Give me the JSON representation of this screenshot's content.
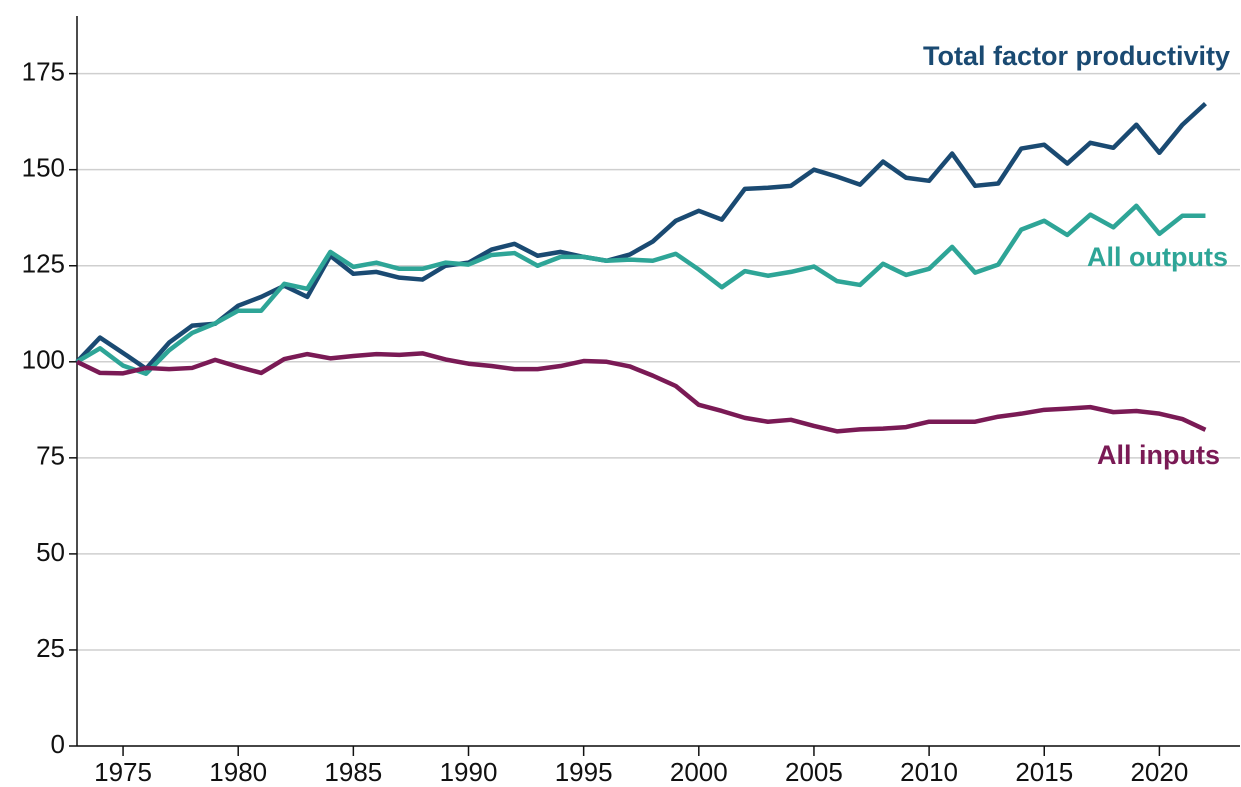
{
  "chart_data": {
    "type": "line",
    "x": [
      1973,
      1974,
      1975,
      1976,
      1977,
      1978,
      1979,
      1980,
      1981,
      1982,
      1983,
      1984,
      1985,
      1986,
      1987,
      1988,
      1989,
      1990,
      1991,
      1992,
      1993,
      1994,
      1995,
      1996,
      1997,
      1998,
      1999,
      2000,
      2001,
      2002,
      2003,
      2004,
      2005,
      2006,
      2007,
      2008,
      2009,
      2010,
      2011,
      2012,
      2013,
      2014,
      2015,
      2016,
      2017,
      2018,
      2019,
      2020,
      2021,
      2022
    ],
    "series": [
      {
        "name": "Total factor productivity",
        "color": "#1a4a72",
        "values": [
          100,
          106.3,
          102.3,
          98.2,
          105,
          109.4,
          109.9,
          114.6,
          116.9,
          119.8,
          116.9,
          127.6,
          122.9,
          123.4,
          121.9,
          121.4,
          125,
          125.8,
          129.2,
          130.7,
          127.6,
          128.6,
          127.3,
          126.3,
          127.9,
          131.3,
          136.7,
          139.3,
          137,
          145,
          145.3,
          145.8,
          150,
          148.2,
          146.1,
          152.1,
          147.9,
          147.1,
          154.2,
          145.8,
          146.4,
          155.5,
          156.5,
          151.6,
          157,
          155.7,
          161.7,
          154.4,
          161.7,
          167.2
        ]
      },
      {
        "name": "All outputs",
        "color": "#2ea597",
        "values": [
          100,
          103.5,
          99,
          96.9,
          103,
          107.5,
          110,
          113.3,
          113.3,
          120.3,
          119,
          128.6,
          124.7,
          125.8,
          124.2,
          124.2,
          125.8,
          125.3,
          127.8,
          128.3,
          125,
          127.3,
          127.3,
          126.3,
          126.6,
          126.3,
          128.1,
          124,
          119.4,
          123.6,
          122.4,
          123.4,
          124.8,
          121,
          120,
          125.5,
          122.6,
          124.2,
          129.9,
          123.2,
          125.3,
          134.4,
          136.7,
          133,
          138.3,
          135,
          140.6,
          133.3,
          138,
          138
        ]
      },
      {
        "name": "All inputs",
        "color": "#7a1a55",
        "values": [
          100,
          97.1,
          97,
          98.4,
          98.1,
          98.4,
          100.5,
          98.7,
          97.1,
          100.7,
          102,
          100.9,
          101.5,
          102,
          101.8,
          102.2,
          100.6,
          99.5,
          98.9,
          98.1,
          98.1,
          98.9,
          100.2,
          100,
          98.8,
          96.4,
          93.7,
          88.8,
          87.2,
          85.4,
          84.4,
          84.9,
          83.3,
          81.9,
          82.4,
          82.6,
          83,
          84.4,
          84.4,
          84.4,
          85.7,
          86.5,
          87.5,
          87.8,
          88.2,
          86.9,
          87.2,
          86.5,
          85.1,
          82.3
        ]
      }
    ],
    "xlim": [
      1973,
      2023.5
    ],
    "xticks": [
      1975,
      1980,
      1985,
      1990,
      1995,
      2000,
      2005,
      2010,
      2015,
      2020
    ],
    "ylim": [
      0,
      190
    ],
    "yticks": [
      0,
      25,
      50,
      75,
      100,
      125,
      150,
      175
    ],
    "grid": true
  }
}
